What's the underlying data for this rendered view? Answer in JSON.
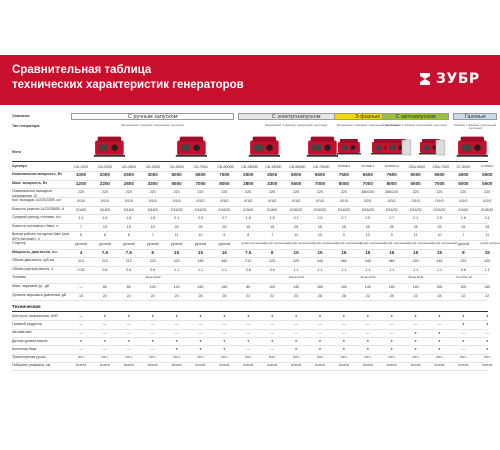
{
  "header": {
    "title_line1": "Сравнительная таблица",
    "title_line2": "технических характеристик генераторов",
    "logo": "ЗУБР",
    "colors": {
      "brand_red": "#c8102e",
      "yellow": "#f4d21f",
      "green": "#9bc13c",
      "light_gray": "#e6e6e6",
      "light_blue": "#c9dcea"
    }
  },
  "table": {
    "row_label_description": "Описание",
    "row_label_type": "Тип генератора",
    "row_label_photo": "Фото",
    "groups": [
      {
        "label": "С ручным запуском",
        "type_text": "Бензиновый, 1-фазный, синхронный, щеточный"
      },
      {
        "label": "С электрозапуском",
        "type_text": "Бензиновый, 1-фазный, синхронный, щеточный"
      },
      {
        "label": "3-фазные",
        "type_text": "Бензиновый, 3-фазный, синхронный, щеточный"
      },
      {
        "label": "С автозапуском",
        "type_text": "Бензиновый, 1-фазный, синхронный, щеточный"
      },
      {
        "label": "Газовые",
        "type_text": "Газовый, 1-фазный, синхронный, щеточный"
      }
    ],
    "articles": [
      "СБ-1200",
      "СБ-2200",
      "СБ-2800",
      "СБ-3300",
      "СБ-5500",
      "СБ-7000",
      "СБ-8000Е",
      "СБ-2800Е",
      "СБ-3300Е",
      "СБ-5500Е",
      "СБ-7000Е",
      "СБ-8000Е-3",
      "СБ-7000Е-3",
      "СБ-8000Е-3А",
      "СБА-5500",
      "СБА-7000",
      "СГ-5000",
      "СГ-5000Е-3"
    ],
    "rows": [
      {
        "label": "Артикул",
        "bold": true,
        "values_key": "articles"
      },
      {
        "label": "Номинальная мощность, Вт",
        "bold": true,
        "values": [
          "1000",
          "2000",
          "2500",
          "3000",
          "5000",
          "6500",
          "7500",
          "2500",
          "3000",
          "5000",
          "6500",
          "7500",
          "6500",
          "7500",
          "5000",
          "6500",
          "4500",
          "5500"
        ]
      },
      {
        "label": "Макс. мощность, Вт",
        "bold": true,
        "values": [
          "1200",
          "2200",
          "2800",
          "3300",
          "5500",
          "7000",
          "8000",
          "2800",
          "3300",
          "5500",
          "7000",
          "8000",
          "7000",
          "8000",
          "5500",
          "7000",
          "5000",
          "5500"
        ]
      },
      {
        "label": "Номинальное выходное напряжение, В",
        "values": [
          "220",
          "220",
          "220",
          "220",
          "220",
          "220",
          "220",
          "220",
          "220",
          "220",
          "220",
          "220",
          "380/220",
          "380/220",
          "220",
          "220",
          "220",
          "220"
        ]
      },
      {
        "label": "Кол. выходов 1х220/230В, шт",
        "values": [
          "0/1/0",
          "0/1/0",
          "0/1/0",
          "0/1/0",
          "0/1/0",
          "0/1/0",
          "0/1/0",
          "0/1/0",
          "0/1/0",
          "0/1/0",
          "0/1/0",
          "0/1/0",
          "0/2/1",
          "0/3/1",
          "0/1/0",
          "0/1/0",
          "0/1/0",
          "0/1/0"
        ]
      },
      {
        "label": "Емкость розеток 1х220/380В, А",
        "values": [
          "0/16/0",
          "0/16/0",
          "0/16/0",
          "0/16/0",
          "0/16/32",
          "0/16/32",
          "0/16/32",
          "0/16/0",
          "0/16/0",
          "0/16/32",
          "0/16/32",
          "0/16/32",
          "0/16/25",
          "0/16/32",
          "0/16/32",
          "0/16/32",
          "0/16/0",
          "0/16/32"
        ]
      },
      {
        "label": "Средний расход топлива, л/ч",
        "values": [
          "1.4",
          "1.6",
          "1.8",
          "1.8",
          "2.1",
          "2.5",
          "2.7",
          "1.8",
          "1.8",
          "2.1",
          "2.5",
          "2.7",
          "2.5",
          "2.7",
          "2.1",
          "2.5",
          "1.8",
          "2.1"
        ]
      },
      {
        "label": "Емкость топливного бака, л",
        "values": [
          "7",
          "15",
          "15",
          "15",
          "25",
          "25",
          "25",
          "15",
          "15",
          "25",
          "25",
          "25",
          "25",
          "25",
          "25",
          "25",
          "15",
          "25"
        ]
      },
      {
        "label": "Время работы на одном баке (при 50% нагрузке), ч",
        "values": [
          "5",
          "8",
          "8",
          "7",
          "11",
          "10",
          "9",
          "8",
          "7",
          "11",
          "10",
          "9",
          "10",
          "9",
          "11",
          "10",
          "7",
          "11"
        ]
      },
      {
        "label": "Стартер",
        "values": [
          "ручной",
          "ручной",
          "ручной",
          "ручной",
          "ручной",
          "ручной",
          "ручной",
          "ручной, электрический",
          "ручной, электрический",
          "ручной, электрический",
          "ручной, электрический",
          "ручной, электрический",
          "ручной, электрический",
          "ручной, электрический",
          "ручной, электрический",
          "ручной, электрический",
          "ручной",
          "ручной, электрический"
        ]
      },
      {
        "label": "Мощность двигателя, л.с.",
        "bold": true,
        "values": [
          "4",
          "7.5",
          "7.5",
          "8",
          "15",
          "15",
          "16",
          "7.5",
          "8",
          "15",
          "15",
          "16",
          "15",
          "16",
          "15",
          "15",
          "8",
          "15"
        ]
      },
      {
        "label": "Объем двигателя, куб.см",
        "values": [
          "113",
          "212",
          "212",
          "223",
          "420",
          "445",
          "460",
          "212",
          "223",
          "420",
          "445",
          "460",
          "445",
          "460",
          "420",
          "445",
          "223",
          "420"
        ]
      },
      {
        "label": "Объем картера масла, л",
        "values": [
          "0.35",
          "0.6",
          "0.6",
          "0.6",
          "1.1",
          "1.1",
          "1.1",
          "0.6",
          "0.6",
          "1.1",
          "1.1",
          "1.1",
          "1.1",
          "1.1",
          "1.1",
          "1.1",
          "0.6",
          "1.1"
        ]
      },
      {
        "label": "Топливо",
        "values": [
          "",
          "",
          "",
          "Бензин АИ-92",
          "",
          "",
          "",
          "",
          "",
          "Бензин АИ-92",
          "",
          "",
          "Бензин АИ-92",
          "",
          "Бензин АИ-92",
          "",
          "Газ АИ-92 / газ",
          ""
        ]
      },
      {
        "label": "Макс. звуковой ур., дБ",
        "values": [
          "—",
          "80",
          "80",
          "100",
          "140",
          "160",
          "160",
          "80",
          "100",
          "140",
          "160",
          "160",
          "140",
          "160",
          "140",
          "160",
          "100",
          "140"
        ]
      },
      {
        "label": "Уровень звукового давления, дБ",
        "values": [
          "15",
          "22",
          "22",
          "22",
          "23",
          "28",
          "28",
          "22",
          "22",
          "23",
          "28",
          "28",
          "22",
          "28",
          "22",
          "28",
          "22",
          "22"
        ]
      }
    ],
    "features_title": "Технические",
    "features": [
      {
        "label": "Контроль напряжения, AVR",
        "marks": [
          "—",
          "●",
          "●",
          "●",
          "●",
          "●",
          "●",
          "●",
          "●",
          "●",
          "●",
          "●",
          "●",
          "●",
          "●",
          "●",
          "●",
          "●"
        ]
      },
      {
        "label": "Газовый редуктор",
        "marks": [
          "—",
          "—",
          "—",
          "—",
          "—",
          "—",
          "—",
          "—",
          "—",
          "—",
          "—",
          "—",
          "—",
          "—",
          "—",
          "—",
          "●",
          "●"
        ]
      },
      {
        "label": "Автоматика",
        "marks": [
          "—",
          "—",
          "—",
          "—",
          "—",
          "—",
          "—",
          "—",
          "—",
          "—",
          "—",
          "—",
          "—",
          "—",
          "●",
          "●",
          "—",
          "—"
        ]
      },
      {
        "label": "Датчик уровня масла",
        "marks": [
          "●",
          "●",
          "●",
          "●",
          "●",
          "●",
          "●",
          "●",
          "●",
          "●",
          "●",
          "●",
          "●",
          "●",
          "●",
          "●",
          "●",
          "●"
        ]
      },
      {
        "label": "Колесная база",
        "marks": [
          "—",
          "—",
          "—",
          "—",
          "●",
          "●",
          "●",
          "—",
          "—",
          "●",
          "●",
          "●",
          "●",
          "●",
          "●",
          "●",
          "—",
          "●"
        ]
      },
      {
        "label": "Транспортная ручка",
        "marks": [
          "НКР-1",
          "НКР-1",
          "НКР-1",
          "НКР-1",
          "НКР-2",
          "НКР-2",
          "НКР-2",
          "НКР-1",
          "НКР-1",
          "НКР-2",
          "НКР-2",
          "НКР-2",
          "НКР-2",
          "НКР-2",
          "НКР-2",
          "НКР-2",
          "НКР-1",
          "НКР-2"
        ]
      },
      {
        "label": "Габариты упаковки, см",
        "marks": [
          "80х55х58",
          "80х55х58",
          "80х55х58",
          "80х55х58",
          "80х55х58",
          "80х55х58",
          "80х55х58",
          "80х55х58",
          "80х55х58",
          "80х55х58",
          "80х55х58",
          "80х55х58",
          "80х55х58",
          "80х55х58",
          "80х55х58",
          "80х55х58",
          "80х55х58",
          "80х55х58"
        ]
      }
    ]
  }
}
